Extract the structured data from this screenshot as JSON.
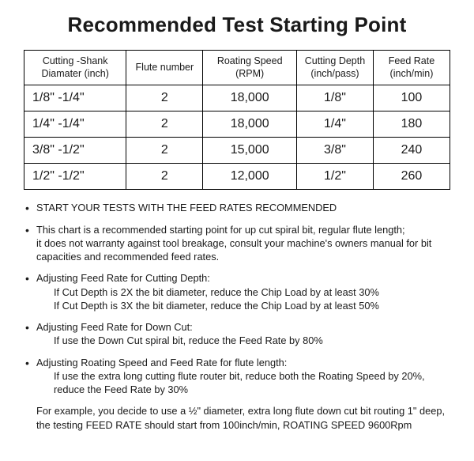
{
  "title": "Recommended Test Starting Point",
  "table": {
    "headers": {
      "shank": "Cutting -Shank\nDiamater (inch)",
      "flute": "Flute number",
      "speed": "Roating Speed\n(RPM)",
      "depth": "Cutting Depth\n(inch/pass)",
      "feed": "Feed Rate\n(inch/min)"
    },
    "rows": [
      {
        "shank": "1/8\"   -1/4\"",
        "flute": "2",
        "speed": "18,000",
        "depth": "1/8\"",
        "feed": "100"
      },
      {
        "shank": "1/4\"  -1/4\"",
        "flute": "2",
        "speed": "18,000",
        "depth": "1/4\"",
        "feed": "180"
      },
      {
        "shank": "3/8\"  -1/2\"",
        "flute": "2",
        "speed": "15,000",
        "depth": "3/8\"",
        "feed": "240"
      },
      {
        "shank": "1/2\"  -1/2\"",
        "flute": "2",
        "speed": "12,000",
        "depth": "1/2\"",
        "feed": "260"
      }
    ]
  },
  "bullets": {
    "b1": "START YOUR TESTS WITH THE FEED RATES RECOMMENDED",
    "b2_line1": "This chart is a recommended starting point for up cut spiral bit, regular flute length;",
    "b2_line2": "it does not warranty against tool breakage, consult your machine's owners manual for bit",
    "b2_line3": "capacities and recommended feed rates.",
    "b3_head": "Adjusting Feed Rate for Cutting Depth:",
    "b3_sub1": "If Cut Depth is 2X the bit diameter, reduce the Chip Load by at least 30%",
    "b3_sub2": "If Cut Depth is 3X the bit diameter, reduce the Chip Load by at least 50%",
    "b4_head": "Adjusting Feed Rate for Down Cut:",
    "b4_sub1": "If use the Down Cut spiral bit, reduce the Feed Rate by 80%",
    "b5_head": "Adjusting Roating Speed and Feed Rate for flute length:",
    "b5_sub1": "If use the extra long cutting flute router bit, reduce both the Roating Speed by 20%,",
    "b5_sub2": "reduce the Feed Rate by 30%"
  },
  "footer": {
    "line1": "For example, you decide to use a ½\"   diameter, extra long flute down cut bit routing 1\"  deep,",
    "line2": "the testing FEED RATE should start from 100inch/min, ROATING SPEED 9600Rpm"
  }
}
